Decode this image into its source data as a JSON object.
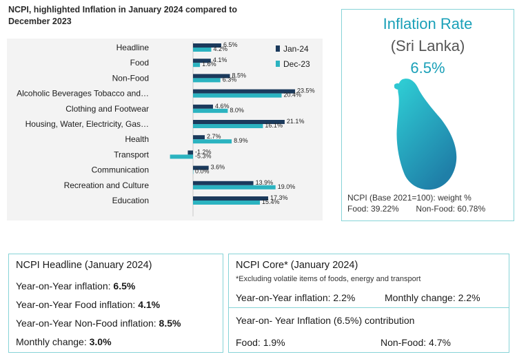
{
  "chart_data": {
    "type": "bar",
    "orientation": "horizontal",
    "title": "NCPI, highlighted Inflation in January 2024 compared to December 2023",
    "categories": [
      "Headline",
      "Food",
      "Non-Food",
      "Alcoholic Beverages Tobacco and…",
      "Clothing and Footwear",
      "Housing, Water, Electricity, Gas…",
      "Health",
      "Transport",
      "Communication",
      "Recreation and Culture",
      "Education"
    ],
    "series": [
      {
        "name": "Jan-24",
        "color": "#1b3a5c",
        "values": [
          6.5,
          4.1,
          8.5,
          23.5,
          4.6,
          21.1,
          2.7,
          -1.2,
          3.6,
          13.9,
          17.3
        ],
        "labels": [
          "6.5%",
          "4.1%",
          "8.5%",
          "23.5%",
          "4.6%",
          "21.1%",
          "2.7%",
          "-1.2%",
          "3.6%",
          "13.9%",
          "17.3%"
        ]
      },
      {
        "name": "Dec-23",
        "color": "#2bb3c0",
        "values": [
          4.2,
          1.6,
          6.3,
          20.4,
          8.0,
          16.1,
          8.9,
          -5.3,
          0.0,
          19.0,
          15.4
        ],
        "labels": [
          "4.2%",
          "1.6%",
          "6.3%",
          "20.4%",
          "8.0%",
          "16.1%",
          "8.9%",
          "-5.3%",
          "0.0%",
          "19.0%",
          "15.4%"
        ]
      }
    ],
    "legend": "top-right"
  },
  "info": {
    "title": "Inflation Rate",
    "subtitle": "(Sri Lanka)",
    "rate": "6.5%",
    "map_icon": "sri-lanka-map",
    "weight_label": "NCPI (Base 2021=100): weight %",
    "food_weight": "Food: 39.22%",
    "nonfood_weight": "Non-Food: 60.78%"
  },
  "headline": {
    "title": "NCPI Headline (January 2024)",
    "yoy_label": "Year-on-Year inflation: ",
    "yoy_value": "6.5%",
    "food_label": "Year-on-Year Food inflation: ",
    "food_value": "4.1%",
    "nonfood_label": "Year-on-Year Non-Food inflation: ",
    "nonfood_value": "8.5%",
    "monthly_label": "Monthly change: ",
    "monthly_value": "3.0%"
  },
  "core": {
    "title": "NCPI Core* (January 2024)",
    "note": "*Excluding volatile items of foods, energy and transport",
    "yoy": "Year-on-Year inflation: 2.2%",
    "monthly": "Monthly change: 2.2%",
    "contribution_title": "Year-on- Year Inflation (6.5%) contribution",
    "food": "Food: 1.9%",
    "nonfood": "Non-Food: 4.7%"
  },
  "colors": {
    "accent": "#1aa0b8",
    "border": "#86d3d7",
    "jan": "#1b3a5c",
    "dec": "#2bb3c0"
  }
}
